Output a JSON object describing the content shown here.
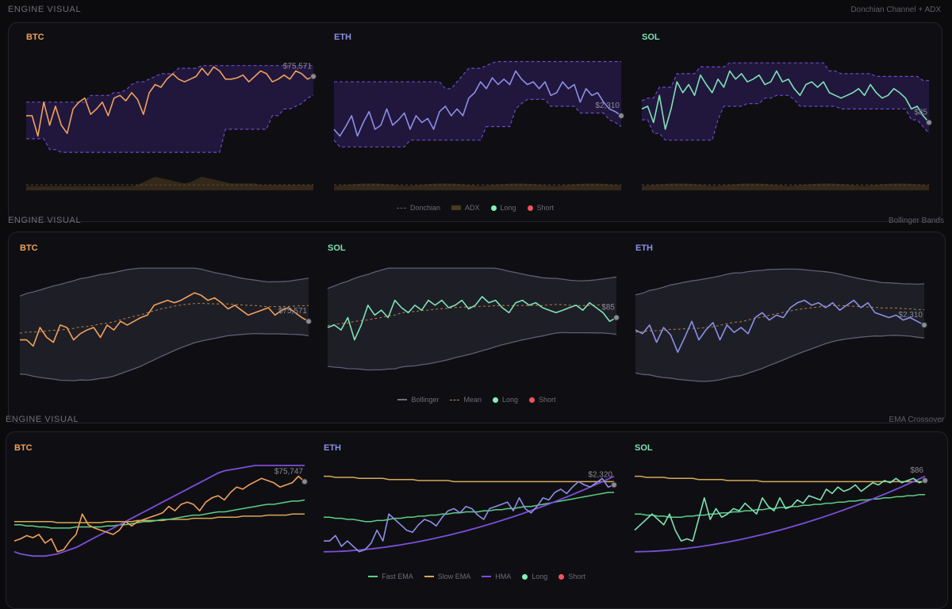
{
  "colors": {
    "btc": "#f0a15a",
    "eth": "#8c8fe6",
    "sol": "#7ee2b5",
    "purple": "#7c4dd8",
    "long": "#86efb8",
    "short": "#f0545e"
  },
  "sections": [
    {
      "label": "ENGINE VISUAL",
      "subtitle": "Donchian Channel + ADX",
      "legend": [
        {
          "label": "Donchian",
          "kind": "dash",
          "color": "#5a5a66"
        },
        {
          "label": "ADX",
          "kind": "box",
          "color": "#4a3a1e"
        },
        {
          "label": "Long",
          "kind": "dot",
          "color": "#86efb8"
        },
        {
          "label": "Short",
          "kind": "dot",
          "color": "#f0545e"
        }
      ]
    },
    {
      "label": "ENGINE VISUAL",
      "subtitle": "Bollinger Bands",
      "legend": [
        {
          "label": "Bollinger",
          "kind": "line",
          "color": "#6e6e84"
        },
        {
          "label": "Mean",
          "kind": "dash",
          "color": "#c08a4a"
        },
        {
          "label": "Long",
          "kind": "dot",
          "color": "#86efb8"
        },
        {
          "label": "Short",
          "kind": "dot",
          "color": "#f0545e"
        }
      ]
    },
    {
      "label": "ENGINE VISUAL",
      "subtitle": "EMA Crossover",
      "legend": [
        {
          "label": "Fast EMA",
          "kind": "line",
          "color": "#5ccf86"
        },
        {
          "label": "Slow EMA",
          "kind": "line",
          "color": "#d9a857"
        },
        {
          "label": "HMA",
          "kind": "line",
          "color": "#7c4dd8"
        },
        {
          "label": "Long",
          "kind": "dot",
          "color": "#86efb8"
        },
        {
          "label": "Short",
          "kind": "dot",
          "color": "#f0545e"
        }
      ]
    }
  ],
  "chart_data": [
    {
      "type": "line",
      "section": 0,
      "symbol": "BTC",
      "color": "#f0a15a",
      "price_label": "$75,571",
      "ylim": [
        0,
        100
      ],
      "series": [
        {
          "name": "price",
          "values": [
            55,
            55,
            40,
            65,
            48,
            62,
            48,
            42,
            60,
            65,
            68,
            56,
            60,
            65,
            55,
            68,
            70,
            66,
            72,
            67,
            56,
            72,
            78,
            76,
            82,
            86,
            82,
            80,
            82,
            84,
            90,
            85,
            91,
            88,
            82,
            82,
            83,
            85,
            80,
            84,
            88,
            86,
            80,
            82,
            85,
            82,
            88,
            86,
            82,
            84
          ]
        }
      ],
      "donchian_upper": [
        65,
        65,
        65,
        65,
        65,
        65,
        65,
        65,
        65,
        65,
        65,
        70,
        70,
        70,
        70,
        72,
        72,
        74,
        78,
        80,
        80,
        82,
        84,
        86,
        86,
        86,
        90,
        90,
        90,
        90,
        92,
        92,
        92,
        92,
        92,
        92,
        92,
        92,
        92,
        92,
        92,
        92,
        92,
        92,
        92,
        92,
        92,
        92,
        92,
        92
      ],
      "donchian_lower": [
        38,
        38,
        38,
        38,
        30,
        30,
        28,
        28,
        28,
        28,
        28,
        28,
        28,
        28,
        28,
        28,
        28,
        28,
        28,
        28,
        28,
        28,
        28,
        28,
        28,
        28,
        28,
        28,
        28,
        28,
        28,
        28,
        28,
        28,
        45,
        45,
        45,
        45,
        45,
        45,
        45,
        45,
        55,
        55,
        60,
        60,
        62,
        64,
        68,
        70
      ],
      "adx": [
        3,
        3,
        3,
        3,
        3,
        3,
        3,
        3,
        3,
        3,
        3,
        3,
        3,
        3,
        3,
        3,
        3,
        3,
        3,
        4,
        6,
        8,
        10,
        9,
        8,
        7,
        6,
        5,
        6,
        8,
        10,
        9,
        8,
        7,
        6,
        5,
        5,
        5,
        5,
        5,
        4,
        4,
        4,
        4,
        4,
        4,
        4,
        4,
        4,
        4
      ]
    },
    {
      "type": "line",
      "section": 0,
      "symbol": "ETH",
      "color": "#8c8fe6",
      "price_label": "$2,310",
      "ylim": [
        0,
        100
      ],
      "series": [
        {
          "name": "price",
          "values": [
            45,
            40,
            47,
            55,
            40,
            50,
            58,
            45,
            48,
            60,
            48,
            52,
            57,
            45,
            55,
            50,
            53,
            45,
            58,
            62,
            55,
            60,
            55,
            68,
            72,
            80,
            75,
            83,
            78,
            82,
            78,
            88,
            82,
            78,
            80,
            75,
            80,
            70,
            72,
            80,
            75,
            78,
            65,
            75,
            70,
            72,
            65,
            60,
            58,
            55
          ]
        }
      ],
      "donchian_upper": [
        80,
        80,
        80,
        80,
        80,
        80,
        80,
        80,
        80,
        80,
        80,
        80,
        80,
        80,
        80,
        80,
        80,
        80,
        80,
        75,
        75,
        80,
        85,
        90,
        90,
        90,
        92,
        94,
        95,
        95,
        95,
        95,
        95,
        95,
        95,
        95,
        95,
        95,
        95,
        95,
        95,
        95,
        95,
        95,
        95,
        95,
        95,
        95,
        95,
        95
      ]
    },
    {
      "type": "line",
      "section": 0,
      "symbol": "SOL",
      "color": "#7ee2b5",
      "price_label": "$85",
      "ylim": [
        0,
        100
      ],
      "series": [
        {
          "name": "price",
          "values": [
            60,
            62,
            50,
            70,
            45,
            60,
            80,
            72,
            78,
            70,
            85,
            78,
            72,
            82,
            76,
            88,
            82,
            86,
            80,
            82,
            85,
            78,
            80,
            88,
            80,
            82,
            75,
            70,
            78,
            80,
            76,
            80,
            72,
            70,
            68,
            70,
            72,
            75,
            70,
            78,
            72,
            68,
            70,
            75,
            72,
            68,
            60,
            62,
            55,
            50
          ]
        }
      ]
    },
    {
      "type": "line",
      "section": 1,
      "symbol": "BTC",
      "color": "#f0a15a",
      "price_label": "$75,571",
      "ylim": [
        0,
        100
      ],
      "series": [
        {
          "name": "price",
          "values": [
            40,
            40,
            35,
            50,
            42,
            38,
            52,
            50,
            40,
            45,
            48,
            50,
            42,
            52,
            48,
            55,
            52,
            55,
            58,
            60,
            68,
            70,
            72,
            70,
            72,
            75,
            78,
            76,
            72,
            74,
            70,
            65,
            68,
            64,
            60,
            62,
            64,
            66,
            60,
            64,
            66,
            62,
            58,
            55
          ]
        }
      ]
    },
    {
      "type": "line",
      "section": 1,
      "symbol": "SOL",
      "color": "#7ee2b5",
      "price_label": "$85",
      "ylim": [
        0,
        100
      ],
      "series": [
        {
          "name": "price",
          "values": [
            50,
            52,
            48,
            58,
            40,
            52,
            68,
            60,
            64,
            58,
            72,
            66,
            62,
            68,
            64,
            72,
            68,
            72,
            66,
            68,
            72,
            65,
            68,
            75,
            70,
            72,
            66,
            62,
            70,
            72,
            68,
            70,
            66,
            64,
            62,
            64,
            66,
            68,
            64,
            70,
            66,
            62,
            55,
            58
          ]
        }
      ]
    },
    {
      "type": "line",
      "section": 1,
      "symbol": "ETH",
      "color": "#8c8fe6",
      "price_label": "$2,310",
      "ylim": [
        0,
        100
      ],
      "series": [
        {
          "name": "price",
          "values": [
            48,
            45,
            52,
            38,
            50,
            44,
            30,
            42,
            55,
            40,
            48,
            54,
            40,
            52,
            46,
            50,
            45,
            58,
            62,
            56,
            60,
            58,
            66,
            70,
            72,
            68,
            70,
            66,
            70,
            64,
            68,
            72,
            66,
            70,
            62,
            60,
            58,
            60,
            56,
            58,
            55,
            52
          ]
        }
      ]
    },
    {
      "type": "line",
      "section": 2,
      "symbol": "BTC",
      "color": "#f0a15a",
      "price_label": "$75,747",
      "ylim": [
        0,
        100
      ],
      "series": [
        {
          "name": "price",
          "values": [
            30,
            32,
            35,
            33,
            36,
            28,
            32,
            20,
            22,
            30,
            36,
            55,
            45,
            42,
            40,
            38,
            36,
            40,
            48,
            44,
            48,
            50,
            52,
            54,
            56,
            62,
            58,
            64,
            66,
            64,
            58,
            66,
            70,
            72,
            68,
            75,
            80,
            78,
            82,
            85,
            88,
            86,
            84,
            80,
            82,
            84,
            90,
            85
          ]
        }
      ],
      "ema_fast": [
        45,
        45,
        44,
        44,
        43,
        43,
        42,
        42,
        42,
        42,
        43,
        43,
        43,
        43,
        43,
        44,
        44,
        45,
        45,
        46,
        47,
        48,
        48,
        49,
        50,
        50,
        51,
        52,
        53,
        54,
        54,
        55,
        56,
        57,
        57,
        58,
        59,
        60,
        61,
        62,
        63,
        64,
        64,
        65,
        66,
        67,
        67,
        68
      ],
      "ema_slow": [
        48,
        48,
        48,
        48,
        48,
        48,
        48,
        47,
        47,
        47,
        47,
        47,
        47,
        47,
        47,
        48,
        48,
        48,
        48,
        48,
        49,
        49,
        49,
        49,
        49,
        50,
        50,
        50,
        50,
        51,
        51,
        51,
        51,
        52,
        52,
        52,
        52,
        53,
        53,
        53,
        53,
        54,
        54,
        54,
        54,
        55,
        55,
        55
      ],
      "hma": [
        20,
        18,
        17,
        16,
        16,
        16,
        17,
        18,
        20,
        22,
        24,
        27,
        30,
        33,
        36,
        39,
        42,
        45,
        48,
        51,
        54,
        57,
        60,
        63,
        66,
        69,
        72,
        75,
        78,
        81,
        84,
        87,
        90,
        93,
        95,
        96,
        97,
        98,
        99,
        100,
        100,
        100,
        100,
        100,
        100,
        100,
        100,
        100
      ]
    },
    {
      "type": "line",
      "section": 2,
      "symbol": "ETH",
      "color": "#8c8fe6",
      "price_label": "$2,320",
      "ylim": [
        0,
        100
      ],
      "series": [
        {
          "name": "price",
          "values": [
            30,
            30,
            35,
            25,
            30,
            25,
            20,
            22,
            28,
            40,
            30,
            55,
            50,
            45,
            40,
            38,
            45,
            50,
            48,
            44,
            52,
            58,
            60,
            56,
            62,
            60,
            54,
            50,
            60,
            62,
            64,
            66,
            58,
            70,
            60,
            56,
            62,
            70,
            68,
            75,
            78,
            74,
            80,
            85,
            82,
            80,
            84,
            88,
            80,
            82
          ]
        }
      ],
      "ema_slow": [
        90,
        90,
        89,
        89,
        89,
        89,
        88,
        88,
        88,
        88,
        88,
        87,
        87,
        87,
        87,
        87,
        86,
        86,
        86,
        86,
        86,
        86,
        85,
        85,
        85,
        85,
        85,
        85,
        85,
        85,
        85,
        85,
        85,
        85,
        85,
        85,
        85,
        85,
        85,
        85,
        85,
        85,
        85,
        85,
        85,
        85,
        85,
        85,
        85,
        85
      ],
      "ema_fast": [
        52,
        52,
        51,
        51,
        50,
        50,
        49,
        48,
        48,
        49,
        49,
        50,
        51,
        51,
        52,
        52,
        53,
        53,
        54,
        54,
        55,
        55,
        56,
        56,
        57,
        57,
        57,
        58,
        58,
        59,
        59,
        60,
        60,
        61,
        62,
        62,
        63,
        64,
        65,
        66,
        67,
        68,
        69,
        70,
        71,
        72,
        73,
        74,
        75,
        75
      ]
    },
    {
      "type": "line",
      "section": 2,
      "symbol": "SOL",
      "color": "#7ee2b5",
      "price_label": "$86",
      "ylim": [
        0,
        100
      ],
      "series": [
        {
          "name": "price",
          "values": [
            40,
            45,
            50,
            55,
            50,
            45,
            55,
            40,
            30,
            32,
            30,
            50,
            70,
            50,
            60,
            52,
            55,
            60,
            58,
            65,
            60,
            55,
            70,
            62,
            58,
            70,
            60,
            62,
            68,
            65,
            72,
            70,
            68,
            78,
            74,
            80,
            76,
            78,
            82,
            76,
            80,
            84,
            82,
            86,
            84,
            88,
            84,
            86,
            88,
            84,
            86
          ]
        }
      ],
      "ema_slow": [
        90,
        90,
        89,
        89,
        89,
        89,
        88,
        88,
        88,
        88,
        88,
        87,
        87,
        87,
        87,
        87,
        86,
        86,
        86,
        86,
        86,
        86,
        85,
        85,
        85,
        85,
        85,
        85,
        85,
        85,
        85,
        85,
        85,
        85,
        85,
        85,
        85,
        85,
        85,
        85,
        85,
        85,
        85,
        85,
        85,
        85,
        85,
        85,
        85,
        85,
        85
      ],
      "ema_fast": [
        55,
        55,
        54,
        54,
        53,
        53,
        52,
        52,
        52,
        53,
        53,
        54,
        54,
        55,
        55,
        56,
        56,
        57,
        57,
        58,
        58,
        59,
        59,
        60,
        60,
        61,
        61,
        62,
        62,
        63,
        63,
        64,
        64,
        65,
        65,
        66,
        66,
        67,
        67,
        68,
        68,
        69,
        69,
        70,
        70,
        71,
        71,
        72,
        72,
        73,
        73
      ]
    }
  ]
}
